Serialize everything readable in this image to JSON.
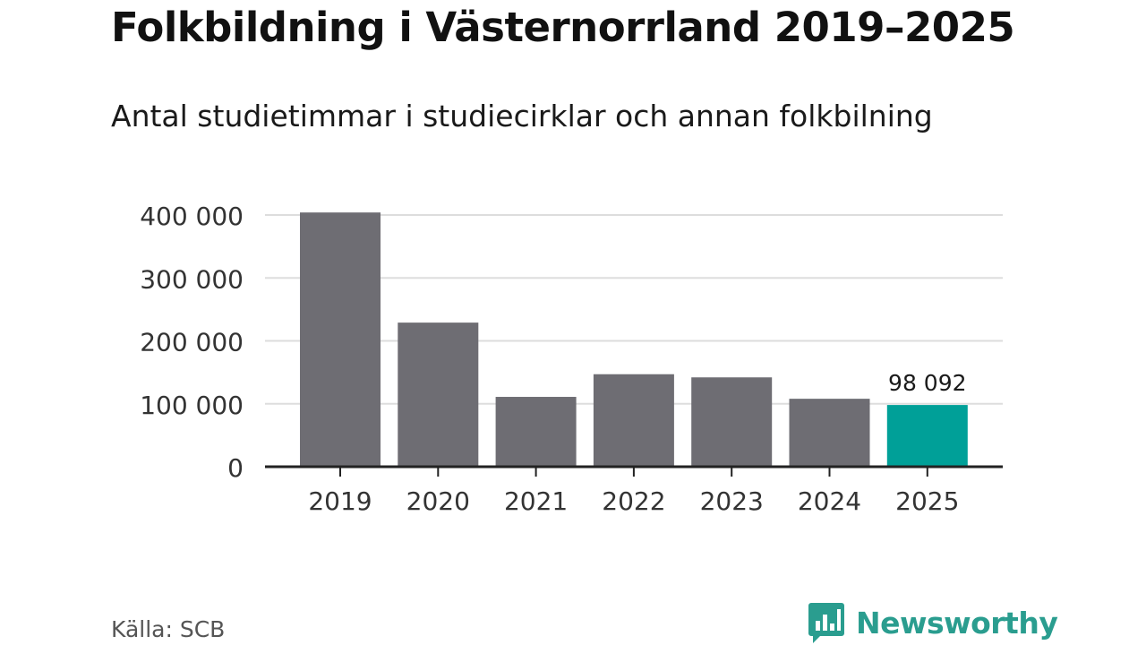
{
  "title": "Folkbildning i Västernorrland 2019–2025",
  "subtitle": "Antal studietimmar i studiecirklar och annan folkbilning",
  "source": "Källa: SCB",
  "brand": {
    "name": "Newsworthy",
    "icon": "newsworthy-logo-icon",
    "color": "#2a9d8f"
  },
  "colors": {
    "bar": "#6e6d73",
    "highlight": "#00a098",
    "grid": "#dddddd",
    "axis": "#222222"
  },
  "chart_data": {
    "type": "bar",
    "categories": [
      "2019",
      "2020",
      "2021",
      "2022",
      "2023",
      "2024",
      "2025"
    ],
    "values": [
      404000,
      229000,
      111000,
      147000,
      142000,
      108000,
      98092
    ],
    "highlight_index": 6,
    "highlight_label": "98 092",
    "ylim": [
      0,
      400000
    ],
    "yticks": [
      0,
      100000,
      200000,
      300000,
      400000
    ],
    "ytick_labels": [
      "0",
      "100 000",
      "200 000",
      "300 000",
      "400 000"
    ],
    "grid": true,
    "xlabel": "",
    "ylabel": ""
  }
}
